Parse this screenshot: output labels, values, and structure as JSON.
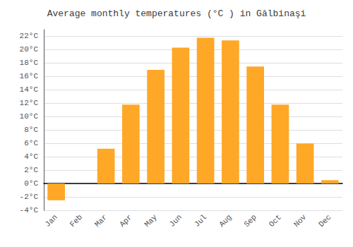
{
  "chart_data": {
    "type": "bar",
    "title": "Average monthly temperatures (°C ) in Gălbinaşi",
    "categories": [
      "Jan",
      "Feb",
      "Mar",
      "Apr",
      "May",
      "Jun",
      "Jul",
      "Aug",
      "Sep",
      "Oct",
      "Nov",
      "Dec"
    ],
    "values": [
      -2.5,
      0.0,
      5.2,
      11.8,
      17.0,
      20.3,
      21.8,
      21.4,
      17.5,
      11.8,
      6.0,
      0.5
    ],
    "color": "#FFA726",
    "ylim": [
      -4,
      23
    ],
    "yticks": [
      {
        "value": -4,
        "label": "-4°C"
      },
      {
        "value": -2,
        "label": "-2°C"
      },
      {
        "value": 0,
        "label": "0°C"
      },
      {
        "value": 2,
        "label": "2°C"
      },
      {
        "value": 4,
        "label": "4°C"
      },
      {
        "value": 6,
        "label": "6°C"
      },
      {
        "value": 8,
        "label": "8°C"
      },
      {
        "value": 10,
        "label": "10°C"
      },
      {
        "value": 12,
        "label": "12°C"
      },
      {
        "value": 14,
        "label": "14°C"
      },
      {
        "value": 16,
        "label": "16°C"
      },
      {
        "value": 18,
        "label": "18°C"
      },
      {
        "value": 20,
        "label": "20°C"
      },
      {
        "value": 22,
        "label": "22°C"
      }
    ],
    "grid": true
  }
}
